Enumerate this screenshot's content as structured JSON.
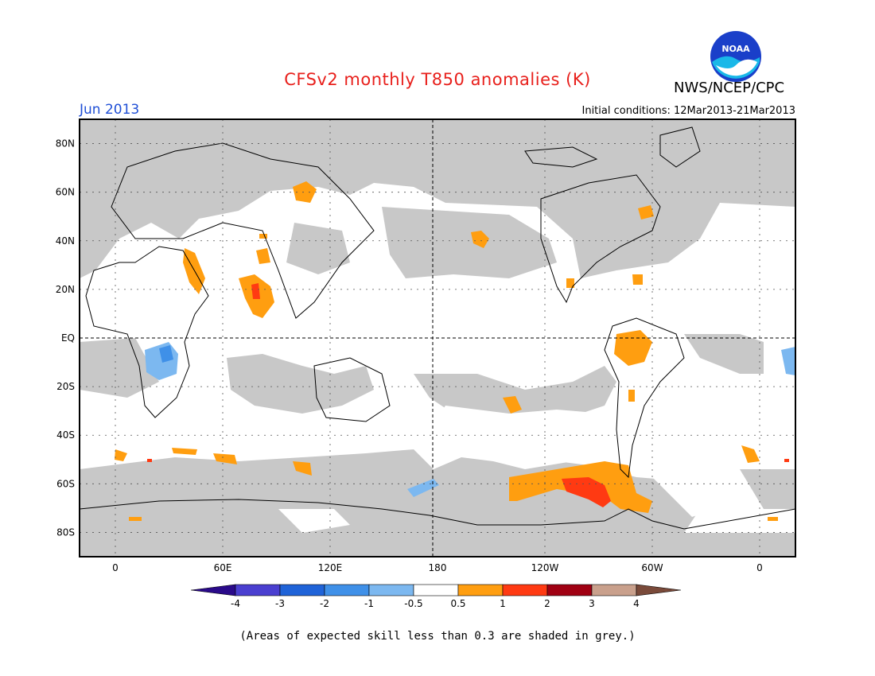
{
  "header": {
    "title": "CFSv2 monthly T850 anomalies (K)",
    "month": "Jun 2013",
    "initial_conditions": "Initial conditions: 12Mar2013-21Mar2013",
    "org": "NWS/NCEP/CPC",
    "logo_text": "NOAA"
  },
  "colors": {
    "title": "#e8201c",
    "month": "#1f4fd6",
    "grey_mask": "#c8c8c8",
    "land_line": "#000000"
  },
  "map": {
    "lat_labels": [
      "80N",
      "60N",
      "40N",
      "20N",
      "EQ",
      "20S",
      "40S",
      "60S",
      "80S"
    ],
    "lat_values": [
      80,
      60,
      40,
      20,
      0,
      -20,
      -40,
      -60,
      -80
    ],
    "lon_labels": [
      "0",
      "60E",
      "120E",
      "180",
      "120W",
      "60W",
      "0"
    ],
    "lon_values": [
      0,
      60,
      120,
      180,
      240,
      300,
      360
    ],
    "lon_range": [
      -20,
      380
    ],
    "lat_range": [
      -90,
      90
    ]
  },
  "legend": {
    "labels": [
      "-4",
      "-3",
      "-2",
      "-1",
      "-0.5",
      "0.5",
      "1",
      "2",
      "3",
      "4"
    ],
    "colors": [
      "#2a0a8a",
      "#4a3fd0",
      "#1f63d8",
      "#3f90e8",
      "#7cb8f0",
      "#ffffff",
      "#ff9e10",
      "#ff3a12",
      "#a00012",
      "#c9a08c",
      "#7a4a3a"
    ]
  },
  "footnote": "(Areas of expected skill less than 0.3 are shaded in grey.)"
}
